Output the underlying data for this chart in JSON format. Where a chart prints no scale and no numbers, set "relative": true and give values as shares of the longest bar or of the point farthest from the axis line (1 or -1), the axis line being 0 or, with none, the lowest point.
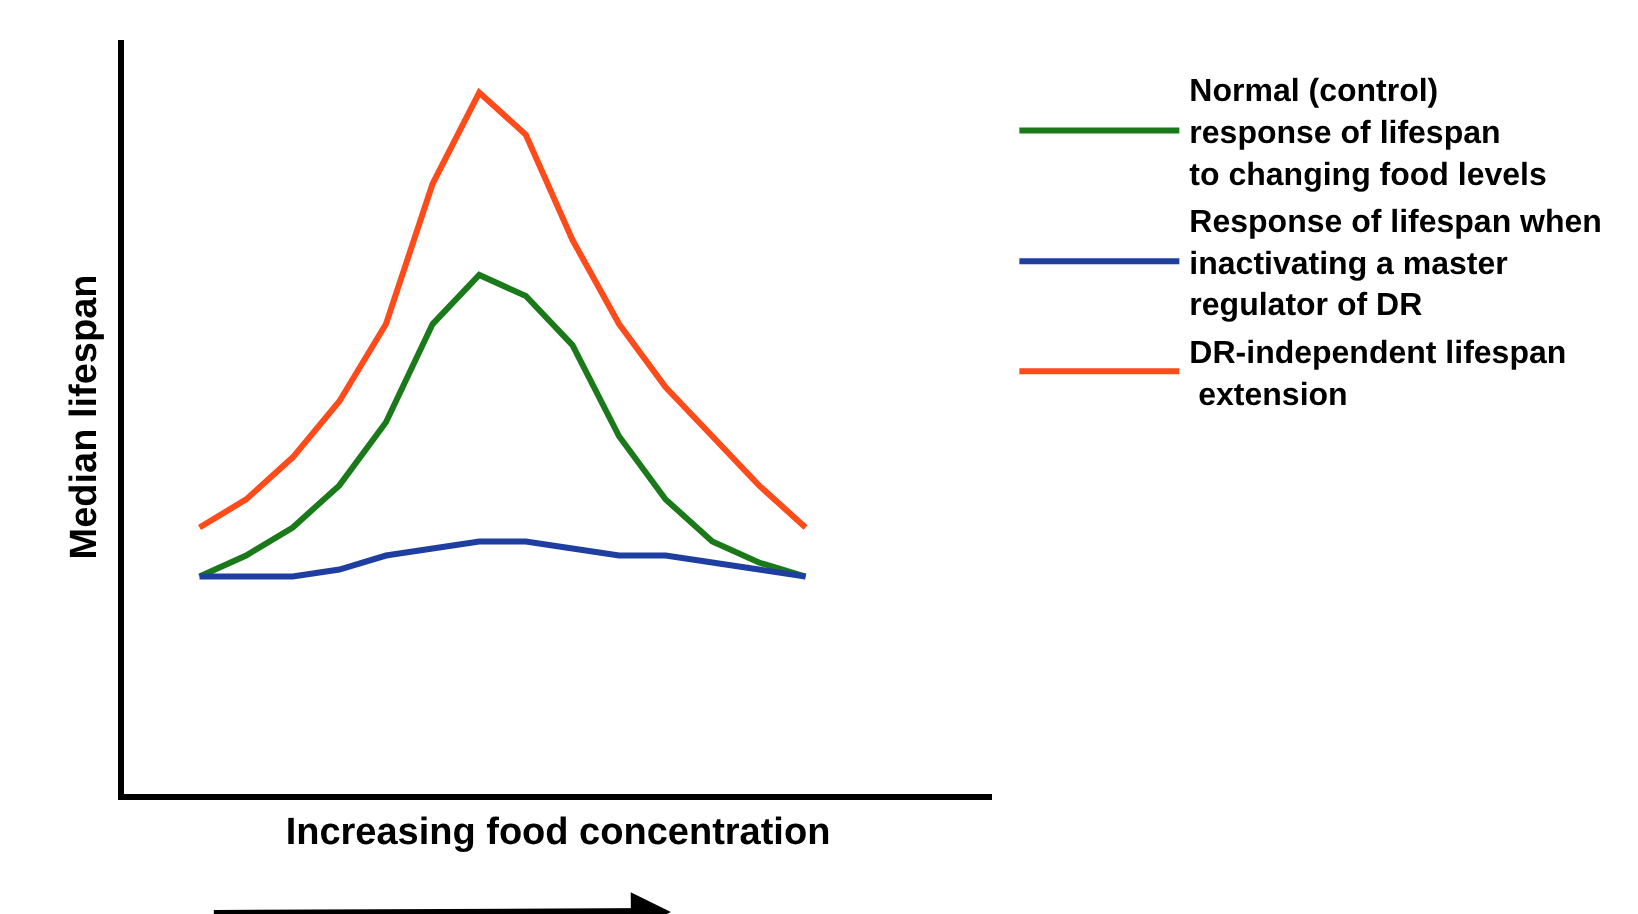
{
  "chart_data": {
    "type": "line",
    "relative": true,
    "xlabel": "Increasing food concentration",
    "ylabel": "Median lifespan",
    "categories": [
      null,
      null,
      null,
      null,
      null,
      null,
      null,
      null,
      null,
      null,
      null,
      null,
      null,
      null
    ],
    "series": [
      {
        "name": "Normal (control)\nresponse of lifespan\nto changing food levels",
        "color": "#1a7a1a",
        "values": [
          0.31,
          0.34,
          0.38,
          0.44,
          0.53,
          0.67,
          0.74,
          0.71,
          0.64,
          0.51,
          0.42,
          0.36,
          0.33,
          0.31
        ]
      },
      {
        "name": "Response of lifespan when\ninactivating a master\nregulator of DR",
        "color": "#1f3fa0",
        "values": [
          0.31,
          0.31,
          0.31,
          0.32,
          0.34,
          0.35,
          0.36,
          0.36,
          0.35,
          0.34,
          0.34,
          0.33,
          0.32,
          0.31
        ]
      },
      {
        "name": "DR-independent lifespan\n extension",
        "color": "#ff4a1a",
        "values": [
          0.38,
          0.42,
          0.48,
          0.56,
          0.67,
          0.87,
          1,
          0.94,
          0.79,
          0.67,
          0.58,
          0.51,
          0.44,
          0.38
        ]
      }
    ],
    "legend": "right",
    "marker": "none",
    "line_style": "solid"
  }
}
